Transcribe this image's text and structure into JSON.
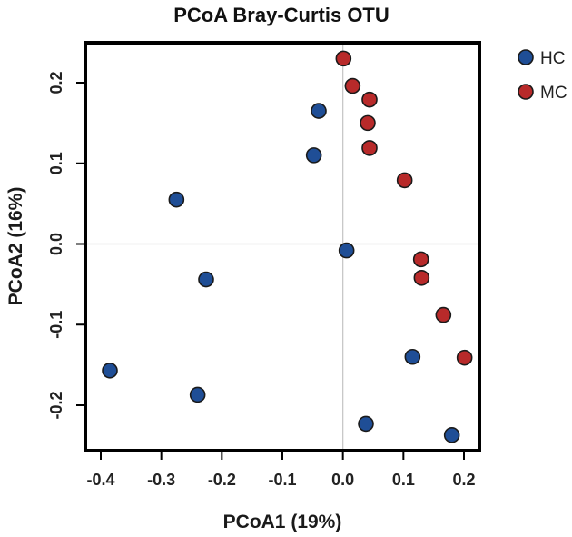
{
  "chart_data": {
    "type": "scatter",
    "title": "PCoA Bray-Curtis OTU",
    "xlabel": "PCoA1 (19%)",
    "ylabel": "PCoA2 (16%)",
    "xlim": [
      -0.4,
      0.22
    ],
    "ylim": [
      -0.25,
      0.25
    ],
    "xticks": [
      -0.4,
      -0.3,
      -0.2,
      -0.1,
      0.0,
      0.1,
      0.2
    ],
    "xtick_labels": [
      "-0.4",
      "-0.3",
      "-0.2",
      "-0.1",
      "0.0",
      "0.1",
      "0.2"
    ],
    "yticks": [
      -0.2,
      -0.1,
      0.0,
      0.1,
      0.2
    ],
    "ytick_labels": [
      "-0.2",
      "-0.1",
      "0.0",
      "0.1",
      "0.2"
    ],
    "reference_lines": {
      "x": 0,
      "y": 0
    },
    "legend_position": "top-right",
    "series": [
      {
        "name": "HC",
        "color": "#1f4e96",
        "points": [
          {
            "x": -0.385,
            "y": -0.157
          },
          {
            "x": -0.275,
            "y": 0.055
          },
          {
            "x": -0.24,
            "y": -0.187
          },
          {
            "x": -0.226,
            "y": -0.044
          },
          {
            "x": -0.048,
            "y": 0.11
          },
          {
            "x": -0.04,
            "y": 0.165
          },
          {
            "x": 0.006,
            "y": -0.008
          },
          {
            "x": 0.038,
            "y": -0.223
          },
          {
            "x": 0.115,
            "y": -0.14
          },
          {
            "x": 0.18,
            "y": -0.237
          }
        ]
      },
      {
        "name": "MC",
        "color": "#b82a2a",
        "points": [
          {
            "x": 0.001,
            "y": 0.23
          },
          {
            "x": 0.016,
            "y": 0.196
          },
          {
            "x": 0.044,
            "y": 0.179
          },
          {
            "x": 0.041,
            "y": 0.15
          },
          {
            "x": 0.044,
            "y": 0.119
          },
          {
            "x": 0.102,
            "y": 0.079
          },
          {
            "x": 0.129,
            "y": -0.019
          },
          {
            "x": 0.13,
            "y": -0.042
          },
          {
            "x": 0.166,
            "y": -0.088
          },
          {
            "x": 0.201,
            "y": -0.141
          }
        ]
      }
    ]
  }
}
